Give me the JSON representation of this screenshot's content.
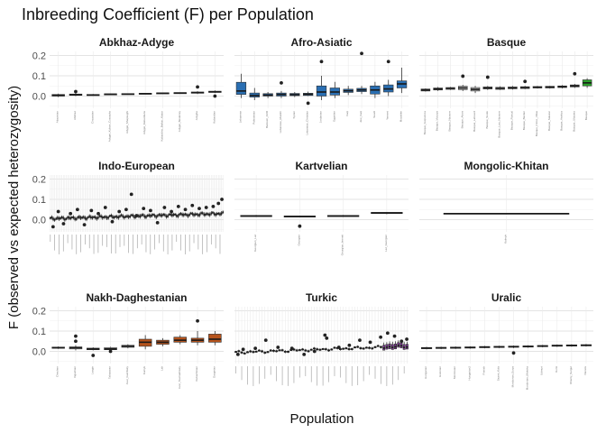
{
  "chart_data": {
    "type": "box",
    "title": "Inbreeding Coefficient (F) per Population",
    "xlabel": "Population",
    "ylabel": "F (observed vs expected heterozygosity)",
    "ylim": [
      -0.06,
      0.22
    ],
    "yticks": [
      0.0,
      0.1,
      0.2
    ],
    "ytick_labels": [
      "0.0",
      "0.1",
      "0.2"
    ],
    "grid": true,
    "legend": "none",
    "panels": [
      {
        "name": "Abkhaz-Adyge",
        "default_color": "#bbbbbb",
        "boxes": [
          {
            "label": "Abazinian",
            "q1": 0.0,
            "median": 0.003,
            "q3": 0.008,
            "min": -0.005,
            "max": 0.012
          },
          {
            "label": "Abkhaz",
            "q1": 0.004,
            "median": 0.006,
            "q3": 0.01,
            "min": 0.0,
            "max": 0.014,
            "outliers": [
              0.022
            ]
          },
          {
            "label": "Circassian",
            "q1": 0.003,
            "median": 0.005,
            "q3": 0.008,
            "min": 0.001,
            "max": 0.01
          },
          {
            "label": "Adygei_Kuban_Cossacks",
            "q1": 0.007,
            "median": 0.009,
            "q3": 0.011,
            "min": 0.006,
            "max": 0.012
          },
          {
            "label": "Adygei_Shapsughi",
            "q1": 0.009,
            "median": 0.01,
            "q3": 0.012,
            "min": 0.008,
            "max": 0.013
          },
          {
            "label": "Adygei_Kabardians",
            "q1": 0.011,
            "median": 0.012,
            "q3": 0.014,
            "min": 0.01,
            "max": 0.015
          },
          {
            "label": "Kabardino_Balkar_Kabar",
            "q1": 0.012,
            "median": 0.014,
            "q3": 0.016,
            "min": 0.011,
            "max": 0.017
          },
          {
            "label": "Adygei_Besleney",
            "q1": 0.013,
            "median": 0.015,
            "q3": 0.017,
            "min": 0.012,
            "max": 0.018
          },
          {
            "label": "Adyghe",
            "q1": 0.014,
            "median": 0.017,
            "q3": 0.02,
            "min": 0.01,
            "max": 0.024,
            "outliers": [
              0.045
            ]
          },
          {
            "label": "Kabardian",
            "q1": 0.018,
            "median": 0.021,
            "q3": 0.024,
            "min": 0.015,
            "max": 0.028,
            "outliers": [
              0.0
            ]
          }
        ]
      },
      {
        "name": "Afro-Asiatic",
        "default_color": "#2a6fb3",
        "boxes": [
          {
            "label": "Lebanese",
            "q1": 0.008,
            "median": 0.025,
            "q3": 0.068,
            "min": -0.01,
            "max": 0.11
          },
          {
            "label": "Palestinian",
            "q1": -0.005,
            "median": 0.003,
            "q3": 0.015,
            "min": -0.02,
            "max": 0.04
          },
          {
            "label": "Bedouin_ADR",
            "q1": 0.0,
            "median": 0.005,
            "q3": 0.012,
            "min": -0.01,
            "max": 0.02
          },
          {
            "label": "Lebanese_Muslim",
            "q1": 0.0,
            "median": 0.008,
            "q3": 0.015,
            "min": -0.01,
            "max": 0.025,
            "outliers": [
              0.065
            ]
          },
          {
            "label": "Syrian",
            "q1": 0.002,
            "median": 0.007,
            "q3": 0.013,
            "min": -0.005,
            "max": 0.02
          },
          {
            "label": "Lebanese_Christian",
            "q1": 0.003,
            "median": 0.009,
            "q3": 0.014,
            "min": 0.0,
            "max": 0.022,
            "outliers": [
              -0.035
            ]
          },
          {
            "label": "Jordanian",
            "q1": 0.0,
            "median": 0.02,
            "q3": 0.05,
            "min": -0.02,
            "max": 0.1,
            "outliers": [
              0.17
            ]
          },
          {
            "label": "Egyptian",
            "q1": 0.005,
            "median": 0.02,
            "q3": 0.04,
            "min": -0.01,
            "max": 0.07
          },
          {
            "label": "Iraqi",
            "q1": 0.018,
            "median": 0.026,
            "q3": 0.034,
            "min": 0.005,
            "max": 0.05
          },
          {
            "label": "Jew_Iraqi",
            "q1": 0.022,
            "median": 0.03,
            "q3": 0.038,
            "min": 0.01,
            "max": 0.05,
            "outliers": [
              0.21
            ]
          },
          {
            "label": "Saudi",
            "q1": 0.01,
            "median": 0.03,
            "q3": 0.05,
            "min": -0.01,
            "max": 0.07
          },
          {
            "label": "Yemeni",
            "q1": 0.02,
            "median": 0.035,
            "q3": 0.055,
            "min": 0.0,
            "max": 0.08,
            "outliers": [
              0.17
            ]
          },
          {
            "label": "Mozabite",
            "q1": 0.04,
            "median": 0.06,
            "q3": 0.075,
            "min": 0.015,
            "max": 0.14
          }
        ]
      },
      {
        "name": "Basque",
        "default_color": "#bbbbbb",
        "boxes": [
          {
            "label": "Basque_Guipuzcoa",
            "q1": 0.025,
            "median": 0.03,
            "q3": 0.035,
            "min": 0.022,
            "max": 0.038
          },
          {
            "label": "Basque_Vizcaya",
            "q1": 0.03,
            "median": 0.035,
            "q3": 0.04,
            "min": 0.025,
            "max": 0.045
          },
          {
            "label": "Basque_Navarre",
            "q1": 0.033,
            "median": 0.038,
            "q3": 0.042,
            "min": 0.03,
            "max": 0.045
          },
          {
            "label": "Basque_Alava",
            "q1": 0.032,
            "median": 0.04,
            "q3": 0.048,
            "min": 0.025,
            "max": 0.055,
            "outliers": [
              0.098
            ]
          },
          {
            "label": "Basque_Labourd",
            "q1": 0.025,
            "median": 0.033,
            "q3": 0.042,
            "min": 0.015,
            "max": 0.05
          },
          {
            "label": "Basque_Soule",
            "q1": 0.035,
            "median": 0.04,
            "q3": 0.045,
            "min": 0.03,
            "max": 0.05,
            "outliers": [
              0.093
            ]
          },
          {
            "label": "Basque_Low_Navarre",
            "q1": 0.033,
            "median": 0.038,
            "q3": 0.043,
            "min": 0.03,
            "max": 0.048
          },
          {
            "label": "Basque_Roncal",
            "q1": 0.036,
            "median": 0.04,
            "q3": 0.045,
            "min": 0.032,
            "max": 0.05
          },
          {
            "label": "Basque_Baztan",
            "q1": 0.037,
            "median": 0.042,
            "q3": 0.046,
            "min": 0.034,
            "max": 0.05,
            "outliers": [
              0.072
            ]
          },
          {
            "label": "Basque_Cinco_Villas",
            "q1": 0.04,
            "median": 0.043,
            "q3": 0.047,
            "min": 0.037,
            "max": 0.05
          },
          {
            "label": "Basque_Salazar",
            "q1": 0.04,
            "median": 0.044,
            "q3": 0.048,
            "min": 0.037,
            "max": 0.05
          },
          {
            "label": "Basque_Aezkoa",
            "q1": 0.042,
            "median": 0.046,
            "q3": 0.05,
            "min": 0.038,
            "max": 0.054
          },
          {
            "label": "Basque_Ultzama",
            "q1": 0.045,
            "median": 0.05,
            "q3": 0.055,
            "min": 0.04,
            "max": 0.06,
            "outliers": [
              0.11
            ]
          },
          {
            "label": "Basque",
            "q1": 0.05,
            "median": 0.065,
            "q3": 0.08,
            "min": 0.04,
            "max": 0.088,
            "color": "#2ca02c"
          }
        ]
      },
      {
        "name": "Indo-European",
        "default_color": "#bbbbbb",
        "trend": {
          "start": 0.005,
          "end": 0.03,
          "spread": 0.012
        },
        "box_count": 120,
        "outliers": [
          [
            0.02,
            -0.035
          ],
          [
            0.05,
            0.04
          ],
          [
            0.08,
            -0.02
          ],
          [
            0.12,
            0.03
          ],
          [
            0.16,
            0.05
          ],
          [
            0.2,
            -0.025
          ],
          [
            0.24,
            0.045
          ],
          [
            0.28,
            0.03
          ],
          [
            0.32,
            0.06
          ],
          [
            0.36,
            -0.01
          ],
          [
            0.4,
            0.04
          ],
          [
            0.44,
            0.05
          ],
          [
            0.47,
            0.125
          ],
          [
            0.5,
            0.02
          ],
          [
            0.54,
            0.055
          ],
          [
            0.58,
            0.045
          ],
          [
            0.62,
            -0.015
          ],
          [
            0.66,
            0.06
          ],
          [
            0.7,
            0.04
          ],
          [
            0.74,
            0.065
          ],
          [
            0.78,
            0.05
          ],
          [
            0.82,
            0.07
          ],
          [
            0.86,
            0.055
          ],
          [
            0.9,
            0.06
          ],
          [
            0.94,
            0.065
          ],
          [
            0.97,
            0.08
          ],
          [
            0.99,
            0.1
          ]
        ]
      },
      {
        "name": "Kartvelian",
        "default_color": "#bbbbbb",
        "boxes": [
          {
            "label": "Georgian_Laz",
            "q1": 0.015,
            "median": 0.018,
            "q3": 0.021,
            "min": 0.013,
            "max": 0.023
          },
          {
            "label": "Georgian",
            "q1": 0.014,
            "median": 0.016,
            "q3": 0.018,
            "min": 0.012,
            "max": 0.02,
            "outliers": [
              -0.032
            ]
          },
          {
            "label": "Georgian_Imereti",
            "q1": 0.015,
            "median": 0.018,
            "q3": 0.021,
            "min": 0.013,
            "max": 0.023
          },
          {
            "label": "Laz_Georgian",
            "q1": 0.03,
            "median": 0.033,
            "q3": 0.036,
            "min": 0.027,
            "max": 0.038
          }
        ]
      },
      {
        "name": "Mongolic-Khitan",
        "default_color": "#bbbbbb",
        "boxes": [
          {
            "label": "Kalmyk",
            "q1": 0.028,
            "median": 0.03,
            "q3": 0.032,
            "min": 0.027,
            "max": 0.033
          }
        ]
      },
      {
        "name": "Nakh-Daghestanian",
        "default_color": "#b5531c",
        "boxes": [
          {
            "label": "Chechen",
            "q1": 0.015,
            "median": 0.018,
            "q3": 0.021,
            "min": 0.012,
            "max": 0.024,
            "color": "#bbbbbb"
          },
          {
            "label": "Ingushian",
            "q1": 0.012,
            "median": 0.018,
            "q3": 0.022,
            "min": 0.005,
            "max": 0.03,
            "outliers": [
              0.05,
              0.075
            ],
            "color": "#bbbbbb"
          },
          {
            "label": "Lezgin",
            "q1": 0.008,
            "median": 0.012,
            "q3": 0.016,
            "min": 0.005,
            "max": 0.02,
            "outliers": [
              -0.02
            ],
            "color": "#bbbbbb"
          },
          {
            "label": "Tabasaran",
            "q1": 0.008,
            "median": 0.012,
            "q3": 0.018,
            "min": 0.003,
            "max": 0.022,
            "outliers": [
              0.0
            ],
            "color": "#bbbbbb"
          },
          {
            "label": "Avar_Gunibsky",
            "q1": 0.02,
            "median": 0.025,
            "q3": 0.03,
            "min": 0.015,
            "max": 0.035,
            "color": "#bbbbbb"
          },
          {
            "label": "Kumyk",
            "q1": 0.025,
            "median": 0.045,
            "q3": 0.06,
            "min": 0.01,
            "max": 0.08
          },
          {
            "label": "Lak",
            "q1": 0.035,
            "median": 0.045,
            "q3": 0.055,
            "min": 0.025,
            "max": 0.065
          },
          {
            "label": "Avar_Tsumadinsky",
            "q1": 0.045,
            "median": 0.055,
            "q3": 0.07,
            "min": 0.035,
            "max": 0.08
          },
          {
            "label": "Kubachinian",
            "q1": 0.045,
            "median": 0.055,
            "q3": 0.065,
            "min": 0.03,
            "max": 0.1,
            "outliers": [
              0.15
            ]
          },
          {
            "label": "Darginian",
            "q1": 0.045,
            "median": 0.06,
            "q3": 0.085,
            "min": 0.03,
            "max": 0.1
          }
        ]
      },
      {
        "name": "Turkic",
        "default_color": "#bbbbbb",
        "trend": {
          "start": -0.005,
          "end": 0.025,
          "spread": 0.008
        },
        "box_count": 60,
        "colored_tail": {
          "count": 9,
          "color": "#7b3294"
        },
        "outliers": [
          [
            0.02,
            -0.015
          ],
          [
            0.05,
            0.01
          ],
          [
            0.12,
            0.015
          ],
          [
            0.18,
            0.055
          ],
          [
            0.25,
            0.02
          ],
          [
            0.33,
            0.015
          ],
          [
            0.4,
            -0.015
          ],
          [
            0.46,
            0.0
          ],
          [
            0.52,
            0.08
          ],
          [
            0.53,
            0.065
          ],
          [
            0.6,
            0.02
          ],
          [
            0.66,
            0.03
          ],
          [
            0.72,
            0.055
          ],
          [
            0.78,
            0.045
          ],
          [
            0.84,
            0.07
          ],
          [
            0.88,
            0.09
          ],
          [
            0.92,
            0.075
          ],
          [
            0.96,
            0.05
          ],
          [
            0.99,
            0.06
          ]
        ]
      },
      {
        "name": "Uralic",
        "default_color": "#bbbbbb",
        "boxes": [
          {
            "label": "Hungarian",
            "q1": 0.013,
            "median": 0.016,
            "q3": 0.019,
            "min": 0.01,
            "max": 0.022
          },
          {
            "label": "Estonian",
            "q1": 0.014,
            "median": 0.017,
            "q3": 0.02,
            "min": 0.011,
            "max": 0.023
          },
          {
            "label": "Mordovian",
            "q1": 0.015,
            "median": 0.018,
            "q3": 0.021,
            "min": 0.012,
            "max": 0.024
          },
          {
            "label": "Hungarian2",
            "q1": 0.016,
            "median": 0.019,
            "q3": 0.022,
            "min": 0.013,
            "max": 0.025
          },
          {
            "label": "Finnish",
            "q1": 0.018,
            "median": 0.021,
            "q3": 0.024,
            "min": 0.015,
            "max": 0.027
          },
          {
            "label": "Saami_Kola",
            "q1": 0.019,
            "median": 0.022,
            "q3": 0.025,
            "min": 0.016,
            "max": 0.028
          },
          {
            "label": "Mordovian_Erzya",
            "q1": 0.02,
            "median": 0.023,
            "q3": 0.026,
            "min": 0.016,
            "max": 0.029,
            "outliers": [
              -0.008
            ]
          },
          {
            "label": "Mordovian_Moksha",
            "q1": 0.021,
            "median": 0.024,
            "q3": 0.027,
            "min": 0.018,
            "max": 0.03
          },
          {
            "label": "Udmurt",
            "q1": 0.023,
            "median": 0.026,
            "q3": 0.029,
            "min": 0.02,
            "max": 0.032
          },
          {
            "label": "Komi",
            "q1": 0.025,
            "median": 0.028,
            "q3": 0.031,
            "min": 0.022,
            "max": 0.034
          },
          {
            "label": "Khanty_Surgut",
            "q1": 0.026,
            "median": 0.029,
            "q3": 0.032,
            "min": 0.023,
            "max": 0.035
          },
          {
            "label": "Nenets",
            "q1": 0.027,
            "median": 0.03,
            "q3": 0.033,
            "min": 0.024,
            "max": 0.036
          }
        ]
      }
    ]
  }
}
